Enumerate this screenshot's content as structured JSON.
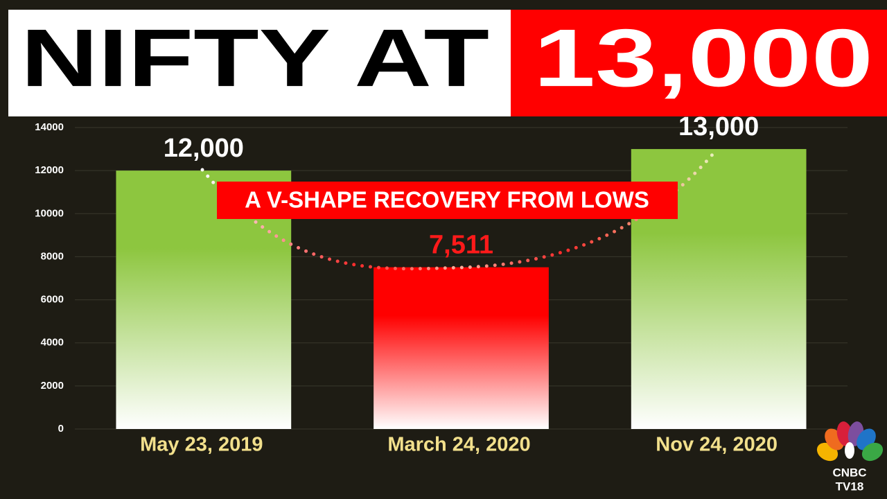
{
  "chart_data": {
    "type": "bar",
    "title": "NIFTY AT",
    "title_highlight": "13,000",
    "annotation": "A V-SHAPE RECOVERY FROM LOWS",
    "categories": [
      "May 23, 2019",
      "March 24, 2020",
      "Nov 24, 2020"
    ],
    "values": [
      12000,
      7511,
      13000
    ],
    "value_labels": [
      "12,000",
      "7,511",
      "13,000"
    ],
    "colors": [
      "#8dc63f",
      "#ff0000",
      "#8dc63f"
    ],
    "value_label_colors": [
      "#ffffff",
      "#ff1a1a",
      "#ffffff"
    ],
    "ylim": [
      0,
      14000
    ],
    "yticks": [
      0,
      2000,
      4000,
      6000,
      8000,
      10000,
      12000,
      14000
    ],
    "grid": true
  },
  "logo": {
    "line1": "CNBC",
    "line2": "TV18"
  }
}
